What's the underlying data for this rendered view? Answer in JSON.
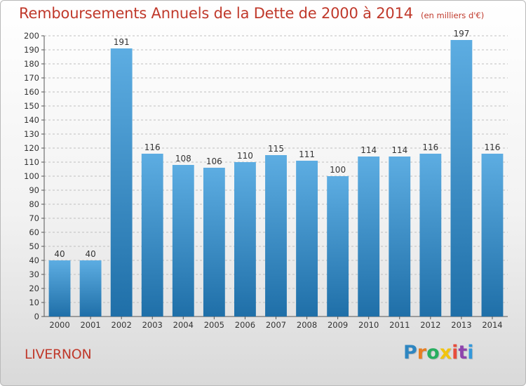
{
  "title": "Remboursements Annuels de la Dette de 2000 à 2014",
  "unit": "(en milliers d'€)",
  "commune": "LIVERNON",
  "logo": {
    "text": "Proxiti",
    "colors": [
      "#2e86c1",
      "#e67e22",
      "#27ae60",
      "#f1c40f",
      "#e74c3c",
      "#8e44ad",
      "#3498db"
    ]
  },
  "colors": {
    "bar_top": "#5dade2",
    "bar_bottom": "#1f6fa8",
    "title": "#c0392b",
    "grid": "#bfbfbf"
  },
  "chart_data": {
    "type": "bar",
    "title": "Remboursements Annuels de la Dette de 2000 à 2014",
    "xlabel": "",
    "ylabel": "",
    "categories": [
      "2000",
      "2001",
      "2002",
      "2003",
      "2004",
      "2005",
      "2006",
      "2007",
      "2008",
      "2009",
      "2010",
      "2011",
      "2012",
      "2013",
      "2014"
    ],
    "values": [
      40,
      40,
      191,
      116,
      108,
      106,
      110,
      115,
      111,
      100,
      114,
      114,
      116,
      197,
      116
    ],
    "ylim": [
      0,
      200
    ],
    "ytick_step": 10,
    "grid": true,
    "legend": "none"
  }
}
